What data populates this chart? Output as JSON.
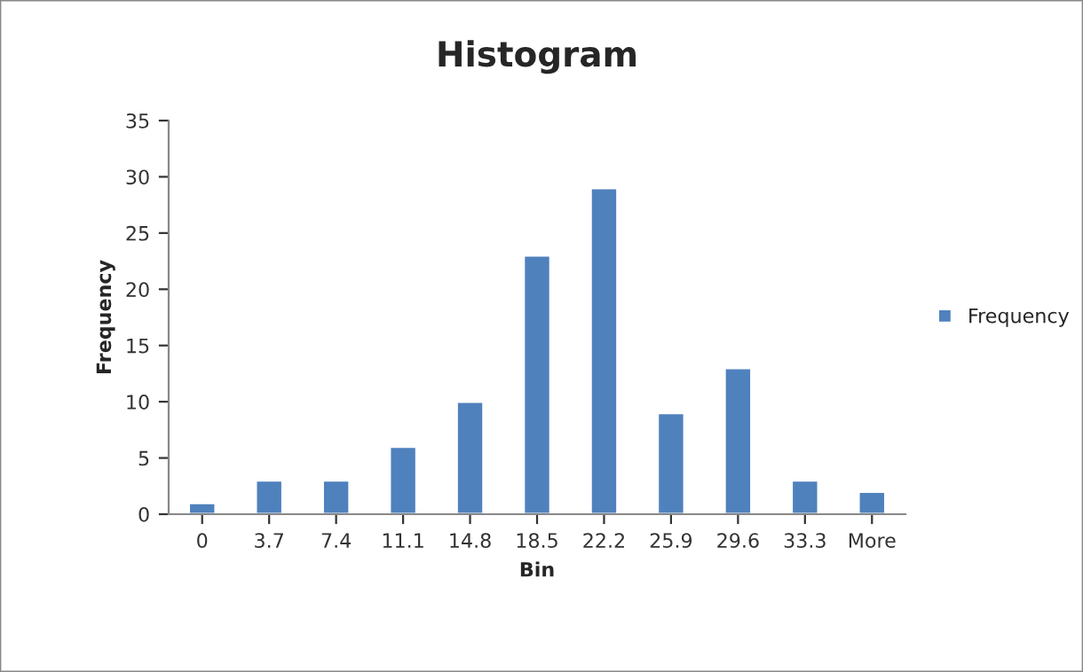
{
  "chart_data": {
    "type": "bar",
    "title": "Histogram",
    "xlabel": "Bin",
    "ylabel": "Frequency",
    "categories": [
      "0",
      "3.7",
      "7.4",
      "11.1",
      "14.8",
      "18.5",
      "22.2",
      "25.9",
      "29.6",
      "33.3",
      "More"
    ],
    "series": [
      {
        "name": "Frequency",
        "color": "#4f81bd",
        "values": [
          1,
          3,
          3,
          6,
          10,
          23,
          29,
          9,
          13,
          3,
          2
        ]
      }
    ],
    "ylim": [
      0,
      35
    ],
    "yticks": [
      0,
      5,
      10,
      15,
      20,
      25,
      30,
      35
    ],
    "legend": "right"
  }
}
